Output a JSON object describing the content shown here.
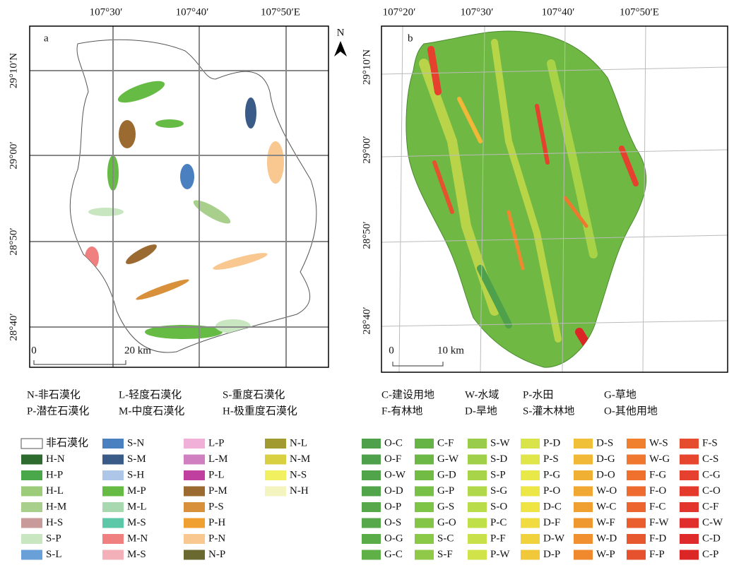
{
  "panel_a": {
    "label": "a",
    "top_ticks": [
      "107°30′",
      "107°40′",
      "107°50′E"
    ],
    "left_ticks": [
      "29°10′N",
      "29°00′",
      "28°50′",
      "28°40′"
    ],
    "scale": [
      "0",
      "20 km"
    ],
    "key": [
      "N-非石漠化",
      "L-轻度石漠化",
      "S-重度石漠化",
      "P-潜在石漠化",
      "M-中度石漠化",
      "H-极重度石漠化"
    ],
    "legend": [
      {
        "label": "非石漠化",
        "color": "#ffffff"
      },
      {
        "label": "H-N",
        "color": "#2e6b2e"
      },
      {
        "label": "H-P",
        "color": "#4aa84a"
      },
      {
        "label": "H-L",
        "color": "#9ccc7a"
      },
      {
        "label": "H-M",
        "color": "#a8d08c"
      },
      {
        "label": "H-S",
        "color": "#c89a9a"
      },
      {
        "label": "S-P",
        "color": "#c8e6c0"
      },
      {
        "label": "S-L",
        "color": "#6aa0d8"
      },
      {
        "label": "S-N",
        "color": "#4a80c0"
      },
      {
        "label": "S-M",
        "color": "#3a5a88"
      },
      {
        "label": "S-H",
        "color": "#aec6e8"
      },
      {
        "label": "M-P",
        "color": "#66bb44"
      },
      {
        "label": "M-L",
        "color": "#a8d8b0"
      },
      {
        "label": "M-S",
        "color": "#5cc8a8"
      },
      {
        "label": "M-N",
        "color": "#f08080"
      },
      {
        "label": "M-S",
        "color": "#f4b0b8"
      },
      {
        "label": "L-P",
        "color": "#f0b0d8"
      },
      {
        "label": "L-M",
        "color": "#d080c0"
      },
      {
        "label": "P-L",
        "color": "#c040a0"
      },
      {
        "label": "P-M",
        "color": "#9a6a30"
      },
      {
        "label": "P-S",
        "color": "#d8903a"
      },
      {
        "label": "P-H",
        "color": "#f0a030"
      },
      {
        "label": "P-N",
        "color": "#f8c890"
      },
      {
        "label": "N-P",
        "color": "#6a6a30"
      },
      {
        "label": "N-L",
        "color": "#a09a30"
      },
      {
        "label": "N-M",
        "color": "#d8d040"
      },
      {
        "label": "N-S",
        "color": "#f0f060"
      },
      {
        "label": "N-H",
        "color": "#f4f4c0"
      }
    ]
  },
  "panel_b": {
    "label": "b",
    "north": "N",
    "top_ticks": [
      "107°20′",
      "107°30′",
      "107°40′",
      "107°50′E"
    ],
    "left_ticks": [
      "29°10′N",
      "29°00′",
      "28°50′",
      "28°40′"
    ],
    "scale": [
      "0",
      "10 km"
    ],
    "key": [
      "C-建设用地",
      "W-水域",
      "P-水田",
      "G-草地",
      "F-有林地",
      "D-旱地",
      "S-灌木林地",
      "O-其他用地"
    ],
    "legend": [
      {
        "label": "O-C",
        "color": "#4ea04a"
      },
      {
        "label": "O-F",
        "color": "#4ea04a"
      },
      {
        "label": "O-W",
        "color": "#52a44a"
      },
      {
        "label": "O-D",
        "color": "#52a44a"
      },
      {
        "label": "O-P",
        "color": "#56a84a"
      },
      {
        "label": "O-S",
        "color": "#56a84a"
      },
      {
        "label": "O-G",
        "color": "#5aac48"
      },
      {
        "label": "G-C",
        "color": "#60b048"
      },
      {
        "label": "C-F",
        "color": "#66b446"
      },
      {
        "label": "G-W",
        "color": "#6cb846"
      },
      {
        "label": "G-D",
        "color": "#72bc46"
      },
      {
        "label": "G-P",
        "color": "#78c046"
      },
      {
        "label": "G-S",
        "color": "#7ec446"
      },
      {
        "label": "G-O",
        "color": "#84c446"
      },
      {
        "label": "S-C",
        "color": "#8ac848"
      },
      {
        "label": "S-F",
        "color": "#90c848"
      },
      {
        "label": "S-W",
        "color": "#98cc4a"
      },
      {
        "label": "S-D",
        "color": "#a0d04a"
      },
      {
        "label": "S-P",
        "color": "#a8d44a"
      },
      {
        "label": "S-G",
        "color": "#b0d84a"
      },
      {
        "label": "S-O",
        "color": "#b8dc4a"
      },
      {
        "label": "P-C",
        "color": "#c0e04a"
      },
      {
        "label": "P-F",
        "color": "#c8e04a"
      },
      {
        "label": "P-W",
        "color": "#d0e44a"
      },
      {
        "label": "P-D",
        "color": "#d8e44a"
      },
      {
        "label": "P-S",
        "color": "#e0e64a"
      },
      {
        "label": "P-G",
        "color": "#e8e848"
      },
      {
        "label": "P-O",
        "color": "#ece646"
      },
      {
        "label": "D-C",
        "color": "#f0e444"
      },
      {
        "label": "D-F",
        "color": "#f0dc40"
      },
      {
        "label": "D-W",
        "color": "#f0d23c"
      },
      {
        "label": "D-P",
        "color": "#f0c83a"
      },
      {
        "label": "D-S",
        "color": "#f0c038"
      },
      {
        "label": "D-G",
        "color": "#f0b836"
      },
      {
        "label": "D-O",
        "color": "#f0b034"
      },
      {
        "label": "W-O",
        "color": "#f0a832"
      },
      {
        "label": "W-C",
        "color": "#f0a030"
      },
      {
        "label": "W-F",
        "color": "#f09830"
      },
      {
        "label": "W-D",
        "color": "#f0902e"
      },
      {
        "label": "W-P",
        "color": "#f0882e"
      },
      {
        "label": "W-S",
        "color": "#f0802e"
      },
      {
        "label": "W-G",
        "color": "#f0782e"
      },
      {
        "label": "F-G",
        "color": "#f0702e"
      },
      {
        "label": "F-O",
        "color": "#ee6a2e"
      },
      {
        "label": "F-C",
        "color": "#ec642e"
      },
      {
        "label": "F-W",
        "color": "#ea5e2e"
      },
      {
        "label": "F-D",
        "color": "#e8582e"
      },
      {
        "label": "F-P",
        "color": "#e6522e"
      },
      {
        "label": "F-S",
        "color": "#e64c2e"
      },
      {
        "label": "C-S",
        "color": "#e6462e"
      },
      {
        "label": "C-G",
        "color": "#e6402e"
      },
      {
        "label": "C-O",
        "color": "#e43a2c"
      },
      {
        "label": "C-F",
        "color": "#e2342c"
      },
      {
        "label": "C-W",
        "color": "#e02e2c"
      },
      {
        "label": "C-D",
        "color": "#de2a2a"
      },
      {
        "label": "C-P",
        "color": "#dc2626"
      }
    ]
  }
}
